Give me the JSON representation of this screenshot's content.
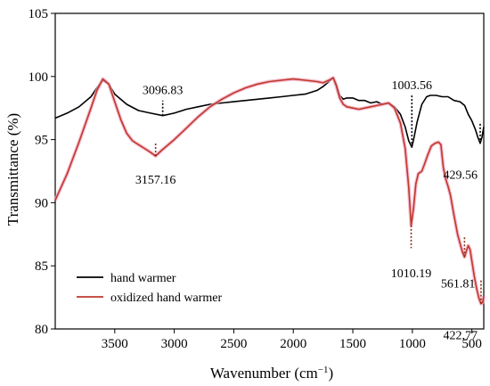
{
  "chart_data": {
    "type": "line",
    "title": "",
    "xlabel": "Wavenumber (cm",
    "xlabel_sup": "−1",
    "xlabel_close": ")",
    "ylabel": "Transmittance (%)",
    "xlim": [
      4000,
      400
    ],
    "ylim": [
      80,
      105
    ],
    "x_reversed": true,
    "xticks": [
      3500,
      3000,
      2500,
      2000,
      1500,
      1000,
      500
    ],
    "yticks": [
      80,
      85,
      90,
      95,
      100,
      105
    ],
    "legend_position": "bottom-left",
    "series": [
      {
        "name": "hand warmer",
        "color": "#000000",
        "points": [
          [
            4000,
            96.7
          ],
          [
            3900,
            97.1
          ],
          [
            3800,
            97.6
          ],
          [
            3700,
            98.4
          ],
          [
            3650,
            99.1
          ],
          [
            3600,
            99.7
          ],
          [
            3550,
            99.4
          ],
          [
            3500,
            98.6
          ],
          [
            3400,
            97.8
          ],
          [
            3300,
            97.3
          ],
          [
            3200,
            97.1
          ],
          [
            3097,
            96.9
          ],
          [
            3000,
            97.1
          ],
          [
            2900,
            97.4
          ],
          [
            2800,
            97.6
          ],
          [
            2700,
            97.8
          ],
          [
            2600,
            97.9
          ],
          [
            2500,
            98.0
          ],
          [
            2400,
            98.1
          ],
          [
            2300,
            98.2
          ],
          [
            2200,
            98.3
          ],
          [
            2100,
            98.4
          ],
          [
            2000,
            98.5
          ],
          [
            1900,
            98.6
          ],
          [
            1800,
            98.9
          ],
          [
            1750,
            99.2
          ],
          [
            1700,
            99.6
          ],
          [
            1665,
            99.9
          ],
          [
            1640,
            99.4
          ],
          [
            1610,
            98.5
          ],
          [
            1580,
            98.2
          ],
          [
            1550,
            98.3
          ],
          [
            1500,
            98.3
          ],
          [
            1450,
            98.1
          ],
          [
            1400,
            98.1
          ],
          [
            1350,
            97.9
          ],
          [
            1300,
            98.0
          ],
          [
            1250,
            97.8
          ],
          [
            1200,
            97.9
          ],
          [
            1150,
            97.6
          ],
          [
            1100,
            97.0
          ],
          [
            1060,
            96.0
          ],
          [
            1030,
            94.9
          ],
          [
            1004,
            94.4
          ],
          [
            985,
            95.2
          ],
          [
            960,
            96.4
          ],
          [
            920,
            97.8
          ],
          [
            880,
            98.4
          ],
          [
            850,
            98.5
          ],
          [
            800,
            98.5
          ],
          [
            750,
            98.4
          ],
          [
            700,
            98.4
          ],
          [
            650,
            98.1
          ],
          [
            600,
            98.0
          ],
          [
            560,
            97.7
          ],
          [
            530,
            97.0
          ],
          [
            500,
            96.5
          ],
          [
            470,
            95.8
          ],
          [
            450,
            95.2
          ],
          [
            430,
            94.7
          ],
          [
            415,
            95.2
          ],
          [
            400,
            96.0
          ]
        ]
      },
      {
        "name": "oxidized hand warmer",
        "color": "#c0392b",
        "points": [
          [
            4000,
            90.2
          ],
          [
            3900,
            92.3
          ],
          [
            3800,
            94.8
          ],
          [
            3700,
            97.5
          ],
          [
            3650,
            98.9
          ],
          [
            3600,
            99.8
          ],
          [
            3550,
            99.4
          ],
          [
            3500,
            98.0
          ],
          [
            3450,
            96.6
          ],
          [
            3400,
            95.5
          ],
          [
            3350,
            94.9
          ],
          [
            3300,
            94.6
          ],
          [
            3250,
            94.3
          ],
          [
            3200,
            94.0
          ],
          [
            3157,
            93.7
          ],
          [
            3100,
            94.2
          ],
          [
            3000,
            95.0
          ],
          [
            2900,
            95.9
          ],
          [
            2800,
            96.8
          ],
          [
            2700,
            97.6
          ],
          [
            2600,
            98.2
          ],
          [
            2500,
            98.7
          ],
          [
            2400,
            99.1
          ],
          [
            2300,
            99.4
          ],
          [
            2200,
            99.6
          ],
          [
            2100,
            99.7
          ],
          [
            2000,
            99.8
          ],
          [
            1900,
            99.7
          ],
          [
            1800,
            99.6
          ],
          [
            1750,
            99.5
          ],
          [
            1700,
            99.7
          ],
          [
            1665,
            99.9
          ],
          [
            1640,
            99.3
          ],
          [
            1610,
            98.3
          ],
          [
            1580,
            97.8
          ],
          [
            1550,
            97.6
          ],
          [
            1500,
            97.5
          ],
          [
            1450,
            97.4
          ],
          [
            1400,
            97.5
          ],
          [
            1350,
            97.6
          ],
          [
            1300,
            97.7
          ],
          [
            1250,
            97.8
          ],
          [
            1200,
            97.9
          ],
          [
            1150,
            97.5
          ],
          [
            1100,
            96.3
          ],
          [
            1060,
            94.3
          ],
          [
            1030,
            91.2
          ],
          [
            1010,
            88.2
          ],
          [
            990,
            89.6
          ],
          [
            970,
            91.5
          ],
          [
            950,
            92.3
          ],
          [
            920,
            92.5
          ],
          [
            900,
            93.0
          ],
          [
            870,
            93.8
          ],
          [
            840,
            94.5
          ],
          [
            810,
            94.7
          ],
          [
            780,
            94.8
          ],
          [
            760,
            94.6
          ],
          [
            740,
            92.8
          ],
          [
            720,
            91.9
          ],
          [
            700,
            91.3
          ],
          [
            680,
            90.6
          ],
          [
            650,
            89.0
          ],
          [
            620,
            87.5
          ],
          [
            600,
            86.8
          ],
          [
            580,
            86.1
          ],
          [
            562,
            85.7
          ],
          [
            545,
            86.2
          ],
          [
            530,
            86.6
          ],
          [
            515,
            86.3
          ],
          [
            500,
            85.4
          ],
          [
            480,
            84.2
          ],
          [
            460,
            83.2
          ],
          [
            440,
            82.4
          ],
          [
            423,
            82.0
          ],
          [
            410,
            82.1
          ],
          [
            400,
            82.6
          ]
        ]
      }
    ],
    "annotations": [
      {
        "text": "3096.83",
        "x": 3097,
        "y_start": 96.9,
        "y_end": 98.1,
        "label_y": 98.6,
        "align": "middle"
      },
      {
        "text": "3157.16",
        "x": 3157,
        "y_start": 93.7,
        "y_end": 94.8,
        "label_y": 91.5,
        "align": "middle"
      },
      {
        "text": "1003.56",
        "x": 1004,
        "y_start": 94.4,
        "y_end": 98.5,
        "label_y": 99.0,
        "align": "middle"
      },
      {
        "text": "429.56",
        "x": 430,
        "y_start": 94.7,
        "y_end": 96.4,
        "label_y": 91.9,
        "align": "end"
      },
      {
        "text": "1010.19",
        "x": 1010,
        "y_start": 88.2,
        "y_end": 86.4,
        "label_y": 84.1,
        "align": "middle"
      },
      {
        "text": "561.81",
        "x": 562,
        "y_start": 85.7,
        "y_end": 87.4,
        "label_y": 83.3,
        "align": "end"
      },
      {
        "text": "422.77",
        "x": 423,
        "y_start": 82.0,
        "y_end": 83.9,
        "label_y": 79.2,
        "align": "end"
      }
    ]
  }
}
